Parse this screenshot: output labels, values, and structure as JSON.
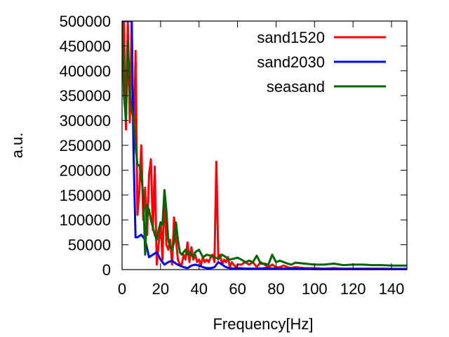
{
  "chart_data": {
    "type": "line",
    "title": "",
    "xlabel": "Frequency[Hz]",
    "ylabel": "a.u.",
    "xlim": [
      0,
      148
    ],
    "ylim": [
      0,
      500000
    ],
    "xticks": [
      0,
      20,
      40,
      60,
      80,
      100,
      120,
      140
    ],
    "yticks": [
      0,
      50000,
      100000,
      150000,
      200000,
      250000,
      300000,
      350000,
      400000,
      450000,
      500000
    ],
    "grid": false,
    "legend_position": "top-right",
    "series": [
      {
        "name": "sand1520",
        "color": "#ff0000",
        "x": [
          0,
          1,
          2,
          3,
          4,
          5,
          6,
          7,
          8,
          9,
          10,
          11,
          12,
          13,
          14,
          15,
          16,
          17,
          18,
          19,
          20,
          21,
          22,
          23,
          24,
          25,
          26,
          27,
          28,
          29,
          30,
          31,
          32,
          33,
          34,
          35,
          36,
          37,
          38,
          39,
          40,
          41,
          42,
          43,
          44,
          45,
          46,
          47,
          48,
          49,
          50,
          51,
          52,
          53,
          54,
          55,
          56,
          57,
          58,
          59,
          60,
          62,
          64,
          66,
          68,
          70,
          72,
          74,
          76,
          78,
          80,
          82,
          84,
          86,
          88,
          90,
          95,
          100,
          105,
          110,
          115,
          120,
          125,
          130,
          135,
          140,
          148
        ],
        "y": [
          500000,
          500000,
          282000,
          500000,
          296000,
          500000,
          225000,
          440000,
          110000,
          160000,
          250000,
          100000,
          165000,
          70000,
          190000,
          222000,
          80000,
          207000,
          10000,
          50000,
          95000,
          20000,
          160000,
          50000,
          40000,
          60000,
          10000,
          105000,
          60000,
          20000,
          10000,
          10000,
          30000,
          20000,
          55000,
          15000,
          45000,
          20000,
          30000,
          15000,
          20000,
          10000,
          25000,
          15000,
          20000,
          15000,
          25000,
          30000,
          15000,
          217000,
          20000,
          30000,
          10000,
          20000,
          15000,
          25000,
          5000,
          15000,
          10000,
          5000,
          10000,
          10000,
          15000,
          10000,
          15000,
          5000,
          15000,
          10000,
          5000,
          10000,
          5000,
          5000,
          8000,
          5000,
          3000,
          5000,
          3000,
          3000,
          2000,
          3000,
          2000,
          2000,
          2000,
          2000,
          2000,
          1500,
          1500
        ]
      },
      {
        "name": "sand2030",
        "color": "#0000ff",
        "x": [
          0,
          2,
          4,
          5,
          6,
          7,
          8,
          10,
          12,
          14,
          16,
          18,
          20,
          22,
          24,
          26,
          28,
          30,
          32,
          34,
          36,
          38,
          40,
          42,
          44,
          46,
          48,
          50,
          52,
          54,
          56,
          58,
          60,
          65,
          70,
          75,
          80,
          90,
          100,
          110,
          120,
          130,
          140,
          148
        ],
        "y": [
          500000,
          500000,
          500000,
          500000,
          225000,
          65000,
          65000,
          70000,
          60000,
          25000,
          30000,
          35000,
          20000,
          10000,
          15000,
          18000,
          12000,
          8000,
          5000,
          3000,
          8000,
          10000,
          8000,
          5000,
          3000,
          3000,
          5000,
          15000,
          10000,
          5000,
          3000,
          2000,
          3000,
          2000,
          2000,
          3000,
          2000,
          2000,
          1000,
          1000,
          1000,
          1000,
          1000,
          1000
        ]
      },
      {
        "name": "seasand",
        "color": "#006400",
        "x": [
          0,
          1,
          2,
          3,
          4,
          5,
          6,
          7,
          8,
          9,
          10,
          11,
          12,
          13,
          14,
          15,
          16,
          17,
          18,
          19,
          20,
          21,
          22,
          23,
          24,
          25,
          26,
          27,
          28,
          29,
          30,
          31,
          32,
          33,
          34,
          35,
          36,
          37,
          38,
          40,
          42,
          44,
          46,
          48,
          50,
          52,
          54,
          56,
          58,
          60,
          62,
          64,
          66,
          68,
          70,
          72,
          74,
          76,
          78,
          80,
          82,
          84,
          86,
          88,
          90,
          95,
          100,
          105,
          110,
          115,
          120,
          125,
          130,
          135,
          140,
          148
        ],
        "y": [
          500000,
          350000,
          300000,
          460000,
          360000,
          320000,
          300000,
          250000,
          210000,
          210000,
          190000,
          150000,
          30000,
          130000,
          120000,
          100000,
          85000,
          70000,
          60000,
          80000,
          95000,
          90000,
          160000,
          120000,
          60000,
          45000,
          40000,
          55000,
          95000,
          60000,
          35000,
          30000,
          35000,
          40000,
          30000,
          35000,
          30000,
          25000,
          35000,
          40000,
          25000,
          30000,
          28000,
          25000,
          22000,
          30000,
          25000,
          20000,
          22000,
          24000,
          20000,
          15000,
          18000,
          15000,
          28000,
          12000,
          12000,
          10000,
          30000,
          15000,
          18000,
          15000,
          12000,
          10000,
          14000,
          12000,
          10000,
          10000,
          12000,
          9000,
          10000,
          10000,
          9000,
          9000,
          8000,
          8000
        ]
      }
    ]
  }
}
